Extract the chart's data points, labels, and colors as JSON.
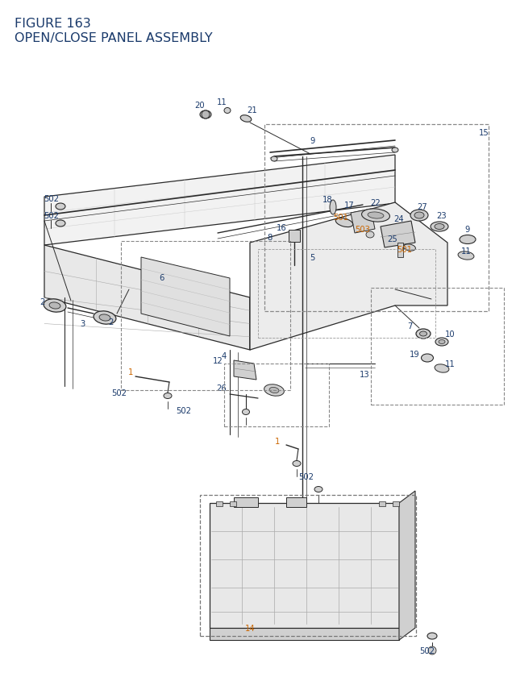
{
  "title_line1": "FIGURE 163",
  "title_line2": "OPEN/CLOSE PANEL ASSEMBLY",
  "title_color": "#1a3a6b",
  "title_fontsize": 11.5,
  "label_color": "#1a3a6b",
  "orange_color": "#cc6600",
  "bg_color": "#ffffff",
  "fig_width": 6.4,
  "fig_height": 8.62,
  "line_color": "#2a2a2a",
  "gray_fill": "#e8e8e8",
  "mid_gray": "#d0d0d0",
  "dark_gray": "#b8b8b8"
}
